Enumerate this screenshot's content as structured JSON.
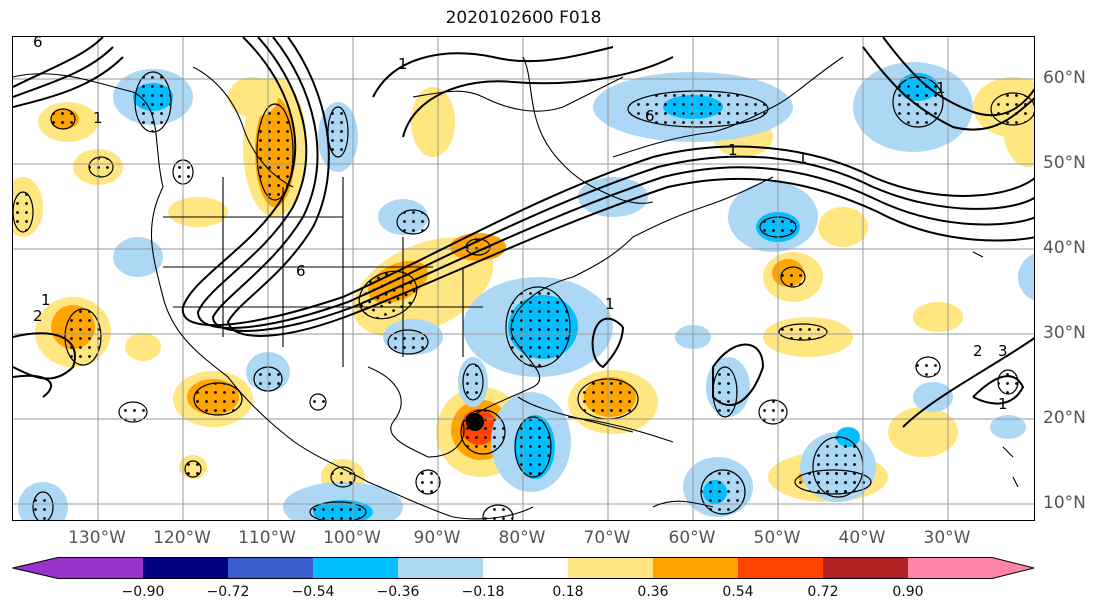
{
  "title": "2020102600 F018",
  "lon_labels": [
    "130°W",
    "120°W",
    "110°W",
    "100°W",
    "90°W",
    "80°W",
    "70°W",
    "60°W",
    "50°W",
    "40°W",
    "30°W"
  ],
  "lat_labels": [
    "60°N",
    "50°N",
    "40°N",
    "30°N",
    "20°N",
    "10°N"
  ],
  "colorbar": {
    "ticks": [
      "−0.90",
      "−0.72",
      "−0.54",
      "−0.36",
      "−0.18",
      "0.18",
      "0.36",
      "0.54",
      "0.72",
      "0.90"
    ],
    "colors": [
      "#9933cc",
      "#000080",
      "#3a5fcd",
      "#00bfff",
      "#add8f5",
      "#ffffff",
      "#ffe680",
      "#ffa500",
      "#ff4500",
      "#b22222",
      "#ff85a8"
    ]
  },
  "contour_labels": [
    "6",
    "1",
    "6",
    "1",
    "2",
    "1",
    "6",
    "1",
    "1",
    "3",
    "1",
    "1",
    "1",
    "2"
  ],
  "marker": {
    "name": "storm-center-marker",
    "color": "#000000"
  },
  "map": {
    "lon_range": [
      -140,
      -25
    ],
    "lat_range": [
      8,
      65
    ],
    "gridlines": true,
    "stippling": true
  }
}
